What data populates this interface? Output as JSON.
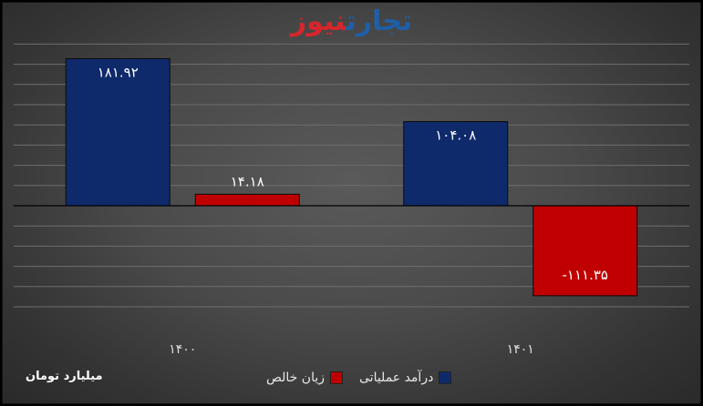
{
  "logo": {
    "part1": "تجارت",
    "part2": "نیوز"
  },
  "unit_label": "میلیارد تومان",
  "colors": {
    "navy": "#0f2a6b",
    "red": "#c00000",
    "grid": "#6e6e6e",
    "text": "#ffffff"
  },
  "chart_data": {
    "type": "bar",
    "categories": [
      "۱۴۰۰",
      "۱۴۰۱"
    ],
    "series": [
      {
        "name": "درآمد عملیاتی",
        "color": "#0f2a6b",
        "values": [
          181.92,
          104.08
        ],
        "labels": [
          "۱۸۱.۹۲",
          "۱۰۴.۰۸"
        ]
      },
      {
        "name": "زیان خالص",
        "color": "#c00000",
        "values": [
          14.18,
          -111.35
        ],
        "labels": [
          "۱۴.۱۸",
          "-۱۱۱.۳۵"
        ]
      }
    ],
    "ylim": [
      -150,
      225
    ],
    "gridlines": [
      -125,
      -100,
      -75,
      -50,
      -25,
      0,
      25,
      50,
      75,
      100,
      125,
      150,
      175,
      200
    ],
    "legend": "bottom"
  }
}
